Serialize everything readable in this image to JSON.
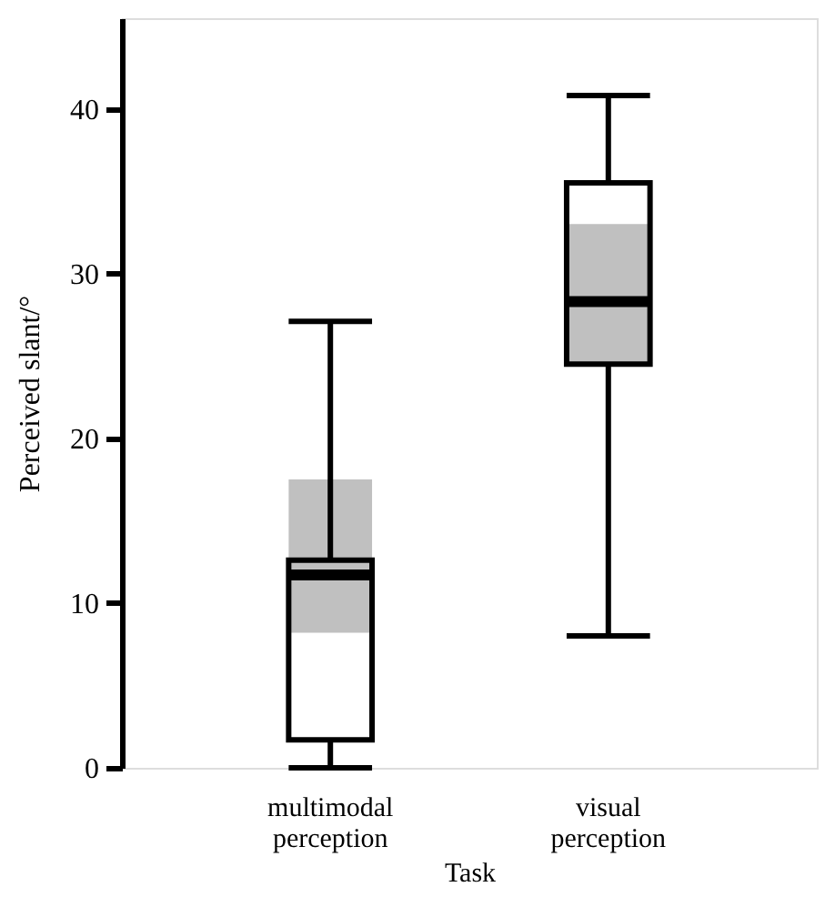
{
  "chart_data": {
    "type": "box",
    "xlabel": "Task",
    "ylabel": "Perceived slant/°",
    "categories": [
      "multimodal perception",
      "visual perception"
    ],
    "ylim": [
      0,
      45.5
    ],
    "yticks": [
      0,
      10,
      20,
      30,
      40
    ],
    "grid": false,
    "series": [
      {
        "type": "bar",
        "color": "#c0c0c0",
        "base": [
          8.2,
          24.5
        ],
        "values": [
          9.3,
          8.5
        ]
      },
      {
        "type": "box",
        "color": "#000000",
        "boxes": [
          {
            "low": 0,
            "q1": 1.7,
            "median": 11.7,
            "q3": 12.6,
            "high": 27.1
          },
          {
            "low": 8.0,
            "q1": 24.5,
            "median": 28.3,
            "q3": 35.5,
            "high": 40.8
          }
        ]
      }
    ]
  }
}
